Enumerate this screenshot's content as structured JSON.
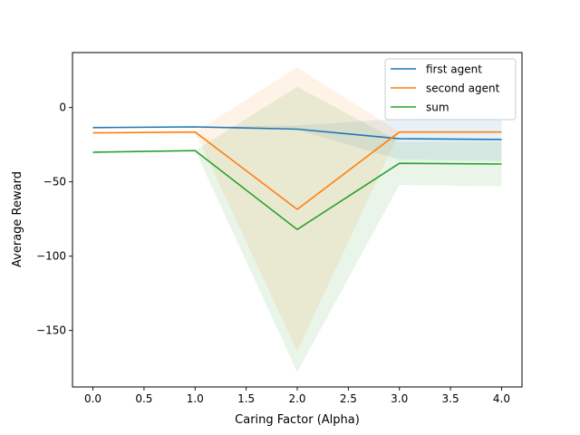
{
  "chart_data": {
    "type": "line",
    "title": "",
    "xlabel": "Caring Factor (Alpha)",
    "ylabel": "Average Reward",
    "x": [
      0,
      1,
      2,
      3,
      4
    ],
    "xlim": [
      -0.2,
      4.2
    ],
    "ylim": [
      -188,
      37
    ],
    "xticks": [
      0.0,
      0.5,
      1.0,
      1.5,
      2.0,
      2.5,
      3.0,
      3.5,
      4.0
    ],
    "xtick_labels": [
      "0.0",
      "0.5",
      "1.0",
      "1.5",
      "2.0",
      "2.5",
      "3.0",
      "3.5",
      "4.0"
    ],
    "yticks": [
      0,
      -50,
      -100,
      -150
    ],
    "ytick_labels": [
      "0",
      "−50",
      "−100",
      "−150"
    ],
    "grid": false,
    "legend_position": "top-right",
    "series": [
      {
        "name": "first agent",
        "color": "#1f77b4",
        "values": [
          -13.5,
          -13,
          -14.5,
          -21,
          -21.5
        ],
        "band_low": [
          -13.5,
          -13,
          -15,
          -35,
          -36
        ],
        "band_high": [
          -13.5,
          -13,
          -12,
          -7.5,
          -7
        ]
      },
      {
        "name": "second agent",
        "color": "#ff7f0e",
        "values": [
          -17,
          -16.5,
          -68.5,
          -16.5,
          -16.5
        ],
        "band_low": [
          -17,
          -16.5,
          -164,
          -16.5,
          -16.5
        ],
        "band_high": [
          -17,
          -16.5,
          27,
          -16.5,
          -16.5
        ]
      },
      {
        "name": "sum",
        "color": "#2ca02c",
        "values": [
          -30,
          -29,
          -82,
          -37.5,
          -38
        ],
        "band_low": [
          -30,
          -29,
          -178,
          -52,
          -53
        ],
        "band_high": [
          -30,
          -29,
          14,
          -23,
          -23
        ]
      }
    ]
  }
}
